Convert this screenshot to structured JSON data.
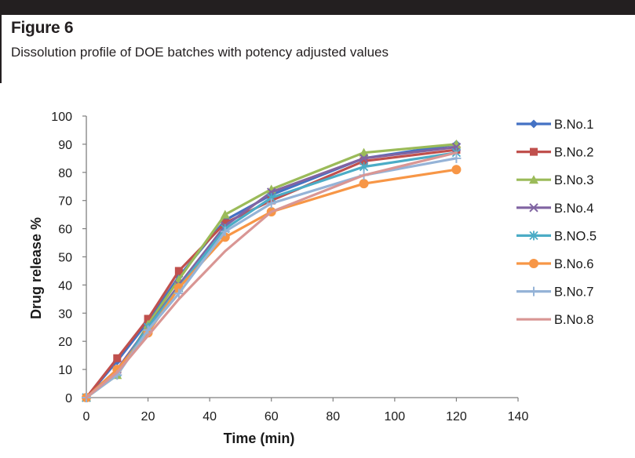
{
  "figure": {
    "label": "Figure 6",
    "caption": "Dissolution profile of DOE batches with potency adjusted values"
  },
  "chart_data": {
    "type": "line",
    "title": "",
    "xlabel": "Time (min)",
    "ylabel": "Drug release %",
    "xlim": [
      0,
      140
    ],
    "ylim": [
      0,
      100
    ],
    "xticks": [
      0,
      20,
      40,
      60,
      80,
      100,
      120,
      140
    ],
    "yticks": [
      0,
      10,
      20,
      30,
      40,
      50,
      60,
      70,
      80,
      90,
      100
    ],
    "grid": false,
    "legend_position": "right",
    "x": [
      0,
      10,
      20,
      30,
      45,
      60,
      90,
      120
    ],
    "series": [
      {
        "name": "B.No.1",
        "color": "#4472c4",
        "marker": "diamond",
        "values": [
          0,
          13,
          27,
          43,
          63,
          72,
          85,
          90
        ]
      },
      {
        "name": "B.No.2",
        "color": "#c0504d",
        "marker": "square",
        "values": [
          0,
          14,
          28,
          45,
          62,
          70,
          84,
          88
        ]
      },
      {
        "name": "B.No.3",
        "color": "#9bbb59",
        "marker": "triangle",
        "values": [
          0,
          8,
          26,
          42,
          65,
          74,
          87,
          90
        ]
      },
      {
        "name": "B.No.4",
        "color": "#8064a2",
        "marker": "x",
        "values": [
          0,
          10,
          25,
          40,
          61,
          73,
          85,
          89
        ]
      },
      {
        "name": "B.NO.5",
        "color": "#4bacc6",
        "marker": "asterisk",
        "values": [
          0,
          9,
          25,
          39,
          60,
          71,
          82,
          87
        ]
      },
      {
        "name": "B.No.6",
        "color": "#f79646",
        "marker": "circle",
        "values": [
          0,
          10,
          23,
          39,
          57,
          66,
          76,
          81
        ]
      },
      {
        "name": "B.No.7",
        "color": "#95b3d7",
        "marker": "plus",
        "values": [
          0,
          8,
          24,
          37,
          59,
          69,
          79,
          85
        ]
      },
      {
        "name": "B.No.8",
        "color": "#d99694",
        "marker": "none",
        "values": [
          0,
          9,
          22,
          35,
          52,
          66,
          79,
          87
        ]
      }
    ]
  }
}
